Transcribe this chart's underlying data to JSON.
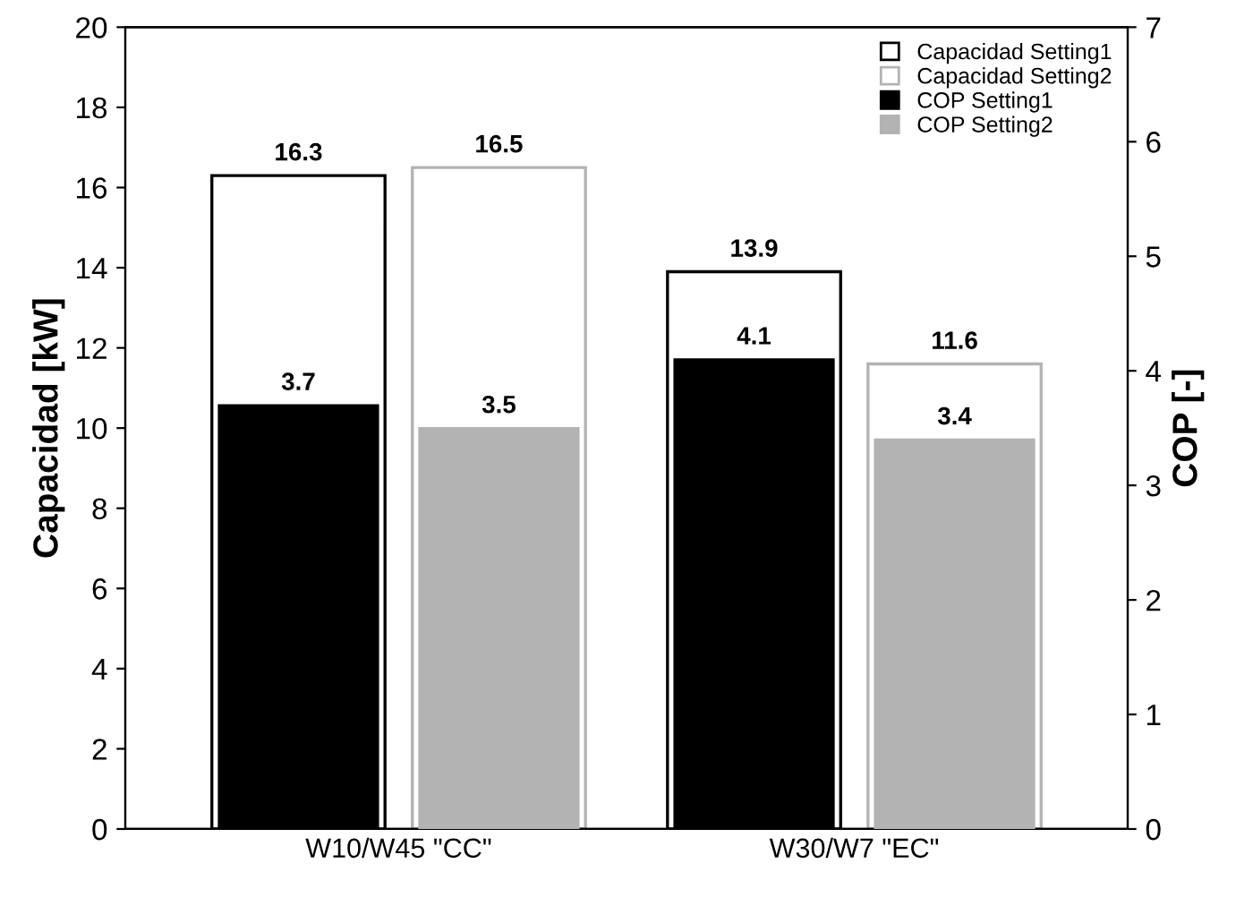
{
  "chart_data": {
    "type": "bar",
    "ylabel": "Capacidad [kW]",
    "y2label": "COP [-]",
    "categories": [
      "W10/W45 \"CC\"",
      "W30/W7 \"EC\""
    ],
    "series": [
      {
        "name": "Capacidad Setting1",
        "color": "#000000",
        "values": [
          16.3,
          13.9
        ],
        "axis": "y"
      },
      {
        "name": "Capacidad Setting2",
        "color": "#b3b3b3",
        "values": [
          16.5,
          11.6
        ],
        "axis": "y"
      },
      {
        "name": "COP Setting1",
        "color": "#000000",
        "values": [
          3.7,
          4.1
        ],
        "axis": "y2"
      },
      {
        "name": "COP Setting2",
        "color": "#b3b3b3",
        "values": [
          3.5,
          3.4
        ],
        "axis": "y2"
      }
    ],
    "ylim": [
      0,
      20
    ],
    "yticks": [
      0,
      2,
      4,
      6,
      8,
      10,
      12,
      14,
      16,
      18,
      20
    ],
    "y2lim": [
      0,
      7
    ],
    "y2ticks": [
      0,
      1,
      2,
      3,
      4,
      5,
      6,
      7
    ],
    "data_labels": true,
    "legend": "top right",
    "grid": false
  }
}
